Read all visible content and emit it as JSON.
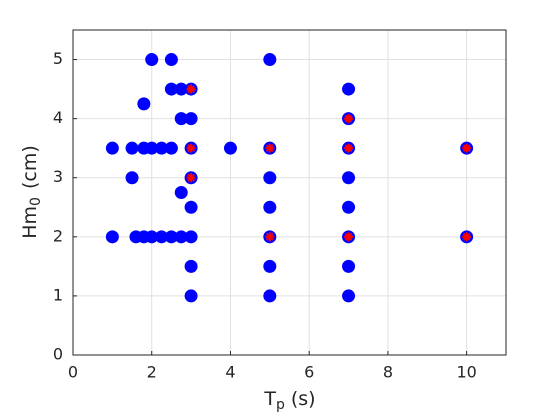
{
  "chart_data": {
    "type": "scatter",
    "xlabel": {
      "main": "T",
      "sub": "p",
      "rest": "(s)"
    },
    "ylabel": {
      "main": "Hm",
      "sub": "0",
      "rest": "(cm)"
    },
    "xlim": [
      0,
      11
    ],
    "ylim": [
      0,
      5.5
    ],
    "xticks": [
      0,
      2,
      4,
      6,
      8,
      10
    ],
    "yticks": [
      0,
      1,
      2,
      3,
      4,
      5
    ],
    "grid": true,
    "series": [
      {
        "marker": "circle",
        "color": "#0000ff",
        "x": [
          1,
          1.6,
          1.8,
          2,
          2.25,
          2.5,
          2.75,
          3,
          1,
          1.5,
          1.8,
          2,
          2.25,
          2.5,
          3,
          4,
          5,
          7,
          10,
          1.5,
          3,
          5,
          7,
          1.8,
          2,
          2.5,
          5,
          2.5,
          2.75,
          3,
          7,
          2.75,
          3,
          7,
          2.75,
          3,
          5,
          7,
          5,
          7,
          10,
          3,
          5,
          7,
          3,
          5,
          7
        ],
        "values": [
          2,
          2,
          2,
          2,
          2,
          2,
          2,
          2,
          3.5,
          3.5,
          3.5,
          3.5,
          3.5,
          3.5,
          3.5,
          3.5,
          3.5,
          3.5,
          3.5,
          3,
          3,
          3,
          3,
          4.25,
          5,
          5,
          5,
          4.5,
          4.5,
          4.5,
          4.5,
          4,
          4,
          4,
          2.75,
          2.5,
          2.5,
          2.5,
          2,
          2,
          2,
          1.5,
          1.5,
          1.5,
          1,
          1,
          1
        ]
      },
      {
        "marker": "star",
        "color": "#ff0000",
        "x": [
          3,
          3,
          3,
          5,
          5,
          7,
          7,
          7,
          10,
          10
        ],
        "values": [
          4.5,
          3.5,
          3,
          3.5,
          2,
          4,
          3.5,
          2,
          3.5,
          2
        ]
      }
    ]
  }
}
